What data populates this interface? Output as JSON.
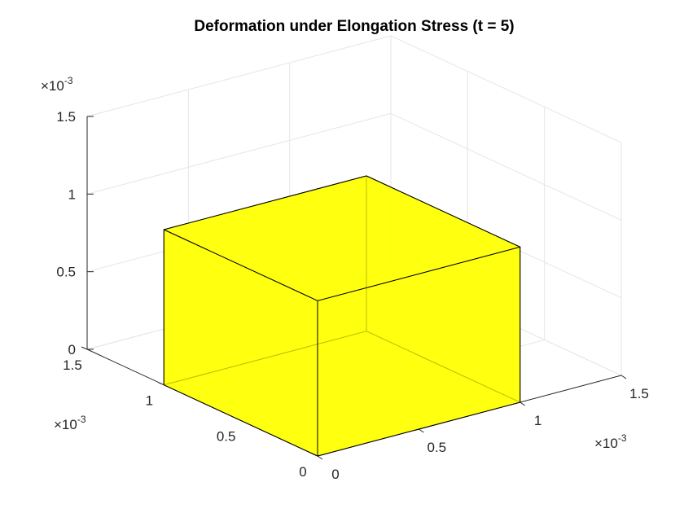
{
  "chart_data": {
    "type": "surface3d",
    "title": "Deformation under Elongation Stress (t = 5)",
    "xlabel": "",
    "ylabel": "",
    "zlabel": "",
    "axes": {
      "x": {
        "ticks": [
          0,
          0.5,
          1,
          1.5
        ],
        "tick_labels": [
          "0",
          "0.5",
          "1",
          "1.5"
        ],
        "lim": [
          0,
          1.5
        ],
        "multiplier": "10",
        "exponent": "-3"
      },
      "y": {
        "ticks": [
          0,
          0.5,
          1,
          1.5
        ],
        "tick_labels": [
          "0",
          "0.5",
          "1",
          "1.5"
        ],
        "lim": [
          0,
          1.5
        ],
        "multiplier": "10",
        "exponent": "-3"
      },
      "z": {
        "ticks": [
          0,
          0.5,
          1,
          1.5
        ],
        "tick_labels": [
          "0",
          "0.5",
          "1",
          "1.5"
        ],
        "lim": [
          0,
          1.5
        ],
        "multiplier": "10",
        "exponent": "-3"
      }
    },
    "multiplier_prefix": "×",
    "grid": true,
    "shape": {
      "kind": "cuboid",
      "x_range": [
        0,
        1
      ],
      "y_range": [
        0,
        1
      ],
      "z_range": [
        0,
        1
      ],
      "face_color": "#ffff00",
      "face_alpha": 0.75,
      "edge_color": "#000000"
    }
  },
  "colors": {
    "grid": "#e6e6e6",
    "axis": "#262626",
    "title": "#000000"
  }
}
